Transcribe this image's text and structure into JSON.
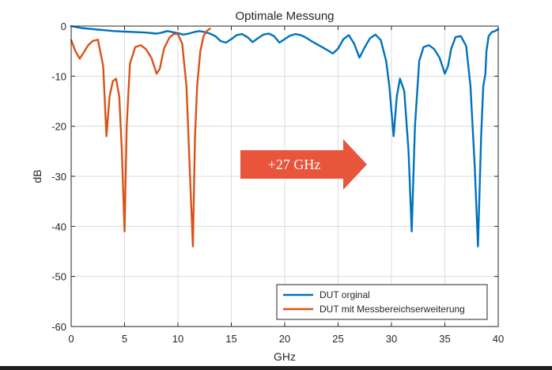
{
  "chart_data": {
    "type": "line",
    "title": "Optimale Messung",
    "xlabel": "GHz",
    "ylabel": "dB",
    "xlim": [
      0,
      40
    ],
    "ylim": [
      -60,
      0
    ],
    "xticks": [
      "0",
      "5",
      "10",
      "15",
      "20",
      "25",
      "30",
      "35",
      "40"
    ],
    "yticks": [
      "0",
      "-10",
      "-20",
      "-30",
      "-40",
      "-50",
      "-60"
    ],
    "grid": true,
    "legend_position": "bottom-right",
    "annotation": {
      "text": "+27 GHz",
      "color": "#e8553a"
    },
    "series": [
      {
        "name": "DUT orginal",
        "color": "#0072bd",
        "x": [
          0,
          0.5,
          1,
          2,
          3,
          4,
          5,
          6,
          7,
          8,
          8.5,
          9,
          10,
          10.5,
          11,
          11.5,
          12,
          12.5,
          13,
          13.5,
          14,
          14.5,
          15,
          15.5,
          16,
          16.5,
          17,
          17.5,
          18,
          18.5,
          19,
          19.5,
          20,
          20.5,
          21,
          21.5,
          22,
          22.5,
          23,
          23.5,
          24,
          24.5,
          25,
          25.5,
          26,
          26.5,
          27,
          27.5,
          28,
          28.5,
          29,
          29.5,
          29.8,
          30.2,
          30.5,
          30.8,
          31.2,
          31.6,
          31.9,
          32.2,
          32.6,
          33,
          33.5,
          34,
          34.5,
          35,
          35.3,
          35.6,
          36,
          36.5,
          37,
          37.4,
          37.8,
          38.1,
          38.4,
          38.6,
          38.8,
          38.9,
          39.1,
          39.4,
          39.7,
          40
        ],
        "y": [
          0,
          -0.2,
          -0.4,
          -0.6,
          -0.8,
          -1.0,
          -1.1,
          -1.2,
          -1.3,
          -1.5,
          -1.3,
          -1.0,
          -1.4,
          -1.7,
          -1.5,
          -1.2,
          -1.0,
          -1.2,
          -1.5,
          -2.0,
          -3.0,
          -3.3,
          -2.6,
          -1.8,
          -1.6,
          -2.2,
          -3.2,
          -2.4,
          -1.7,
          -1.5,
          -2.0,
          -3.3,
          -2.6,
          -1.9,
          -1.6,
          -1.8,
          -2.3,
          -3.0,
          -3.6,
          -4.2,
          -4.8,
          -5.5,
          -4.5,
          -2.6,
          -1.8,
          -3.5,
          -6.3,
          -4.2,
          -2.4,
          -1.7,
          -2.8,
          -7.0,
          -12.0,
          -22.0,
          -14.0,
          -10.5,
          -13.0,
          -25.0,
          -41.0,
          -20.0,
          -7.0,
          -4.2,
          -3.8,
          -4.6,
          -6.3,
          -9.5,
          -8.0,
          -4.5,
          -2.2,
          -2.0,
          -4.0,
          -12.0,
          -28.0,
          -44.0,
          -22.0,
          -12.0,
          -9.5,
          -5.0,
          -2.0,
          -1.2,
          -1.0,
          -0.6
        ]
      },
      {
        "name": "DUT mit Messbereichserweiterung",
        "color": "#d95319",
        "x": [
          0,
          0.4,
          0.8,
          1.2,
          1.6,
          2,
          2.5,
          3,
          3.3,
          3.6,
          3.9,
          4.2,
          4.5,
          4.75,
          5,
          5.2,
          5.5,
          6,
          6.5,
          7,
          7.5,
          8,
          8.3,
          8.7,
          9.2,
          9.6,
          10,
          10.4,
          10.8,
          11.1,
          11.4,
          11.6,
          11.8,
          11.9,
          12.1,
          12.4,
          12.7,
          13
        ],
        "y": [
          -2.8,
          -5.0,
          -6.5,
          -5.2,
          -3.8,
          -3.0,
          -2.7,
          -8.0,
          -22.0,
          -14.0,
          -11.0,
          -10.5,
          -14.0,
          -25.0,
          -41.0,
          -20.0,
          -7.5,
          -4.2,
          -3.8,
          -4.6,
          -6.3,
          -9.5,
          -8.5,
          -4.5,
          -2.3,
          -1.6,
          -1.6,
          -3.5,
          -12.0,
          -28.0,
          -44.0,
          -22.0,
          -12.0,
          -9.5,
          -5.0,
          -2.0,
          -1.0,
          -0.5
        ]
      }
    ]
  }
}
